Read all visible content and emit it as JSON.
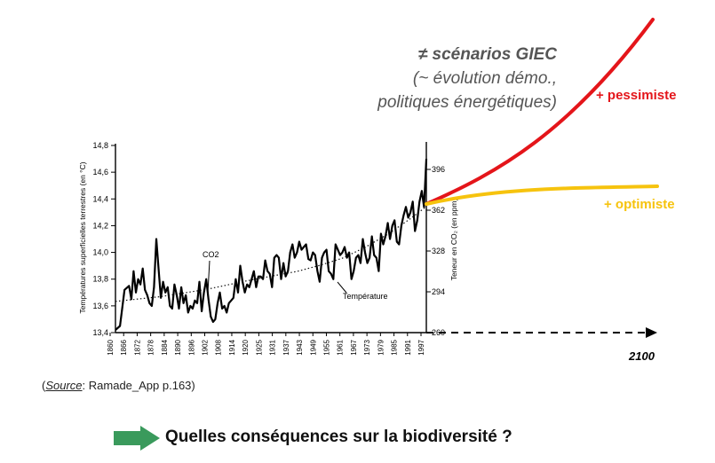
{
  "scenarios": {
    "title": "≠ scénarios GIEC",
    "line2": "(~ évolution démo.,",
    "line3": "politiques énergétiques)",
    "pessimist_label": "+ pessimiste",
    "optimist_label": "+ optimiste",
    "end_year": "2100",
    "colors": {
      "pessimist": "#e4151a",
      "optimist": "#f6c30e",
      "text": "#555555"
    }
  },
  "source": {
    "label": "Source",
    "text": ": Ramade_App p.163)",
    "open": "("
  },
  "question": "Quelles conséquences sur la biodiversité ?",
  "icons": {
    "question_arrow": "arrow-right-icon",
    "arrow_color": "#3a9a5c"
  },
  "chart_data": {
    "type": "line",
    "xlabel": "",
    "ylabel": "Températures superficielles terrestres (en °C)",
    "ylabel_right": "Teneur en CO₂ (en ppm)",
    "xlim": [
      1860,
      1997
    ],
    "ylim": [
      13.4,
      14.8
    ],
    "ylim_right": [
      260,
      396
    ],
    "x_ticks": [
      "1860",
      "1866",
      "1872",
      "1878",
      "1884",
      "1890",
      "1896",
      "1902",
      "1908",
      "1914",
      "1920",
      "1925",
      "1931",
      "1937",
      "1943",
      "1949",
      "1955",
      "1961",
      "1967",
      "1973",
      "1979",
      "1985",
      "1991",
      "1997"
    ],
    "y_ticks": [
      "13,4",
      "13,6",
      "13,8",
      "14,0",
      "14,2",
      "14,4",
      "14,6",
      "14,8"
    ],
    "y_ticks_right": [
      "260",
      "294",
      "328",
      "362",
      "396"
    ],
    "series": [
      {
        "name": "Température",
        "x": [
          1860,
          1862,
          1864,
          1866,
          1867,
          1868,
          1869,
          1870,
          1871,
          1872,
          1873,
          1874,
          1875,
          1876,
          1877,
          1878,
          1879,
          1880,
          1881,
          1882,
          1883,
          1884,
          1885,
          1886,
          1887,
          1888,
          1889,
          1890,
          1891,
          1892,
          1893,
          1894,
          1895,
          1896,
          1897,
          1898,
          1899,
          1900,
          1901,
          1902,
          1903,
          1904,
          1905,
          1906,
          1907,
          1908,
          1909,
          1910,
          1911,
          1912,
          1913,
          1914,
          1915,
          1916,
          1917,
          1918,
          1919,
          1920,
          1921,
          1922,
          1923,
          1924,
          1925,
          1926,
          1927,
          1928,
          1929,
          1930,
          1931,
          1932,
          1933,
          1934,
          1935,
          1936,
          1937,
          1938,
          1939,
          1940,
          1941,
          1942,
          1943,
          1944,
          1945,
          1946,
          1947,
          1948,
          1949,
          1950,
          1951,
          1952,
          1953,
          1954,
          1955,
          1956,
          1957,
          1958,
          1959,
          1960,
          1961,
          1962,
          1963,
          1964,
          1965,
          1966,
          1967,
          1968,
          1969,
          1970,
          1971,
          1972,
          1973,
          1974,
          1975,
          1976,
          1977,
          1978,
          1979,
          1980,
          1981,
          1982,
          1983,
          1984,
          1985,
          1986,
          1987,
          1988,
          1989,
          1990,
          1991,
          1992,
          1993,
          1994,
          1995,
          1996,
          1997
        ],
        "values": [
          13.42,
          13.45,
          13.72,
          13.75,
          13.65,
          13.86,
          13.7,
          13.8,
          13.76,
          13.88,
          13.72,
          13.68,
          13.62,
          13.6,
          13.74,
          14.1,
          13.88,
          13.66,
          13.78,
          13.7,
          13.74,
          13.6,
          13.58,
          13.76,
          13.68,
          13.58,
          13.74,
          13.62,
          13.68,
          13.55,
          13.6,
          13.58,
          13.64,
          13.62,
          13.78,
          13.56,
          13.7,
          13.8,
          13.65,
          13.52,
          13.48,
          13.5,
          13.62,
          13.7,
          13.58,
          13.6,
          13.55,
          13.62,
          13.64,
          13.66,
          13.8,
          13.7,
          13.9,
          13.78,
          13.7,
          13.76,
          13.74,
          13.8,
          13.86,
          13.74,
          13.82,
          13.82,
          13.8,
          13.94,
          13.86,
          13.84,
          13.74,
          13.96,
          13.98,
          13.96,
          13.8,
          13.92,
          13.82,
          13.86,
          14.0,
          14.06,
          13.96,
          14.0,
          14.08,
          14.02,
          14.04,
          14.06,
          13.95,
          13.94,
          14.0,
          13.98,
          13.86,
          13.78,
          13.96,
          14.0,
          14.02,
          13.86,
          13.84,
          13.8,
          14.06,
          14.02,
          13.98,
          14.0,
          14.04,
          13.96,
          14.0,
          13.8,
          13.86,
          13.96,
          13.98,
          13.92,
          14.1,
          14.0,
          13.92,
          13.96,
          14.12,
          13.98,
          13.96,
          13.86,
          14.14,
          14.06,
          14.12,
          14.22,
          14.1,
          14.2,
          14.24,
          14.08,
          14.06,
          14.2,
          14.28,
          14.34,
          14.26,
          14.3,
          14.38,
          14.16,
          14.24,
          14.38,
          14.46,
          14.34,
          14.7
        ]
      },
      {
        "name": "CO2",
        "axis": "right",
        "x": [
          1860,
          1880,
          1900,
          1920,
          1940,
          1950,
          1960,
          1970,
          1980,
          1990,
          1997
        ],
        "values": [
          286,
          290,
          296,
          304,
          311,
          316,
          322,
          331,
          342,
          355,
          365
        ]
      }
    ],
    "scenario_series": [
      {
        "name": "+ pessimiste",
        "x": [
          1997,
          2100
        ],
        "end": "top-right"
      },
      {
        "name": "+ optimiste",
        "x": [
          1997,
          2100
        ],
        "end": "right"
      }
    ]
  }
}
